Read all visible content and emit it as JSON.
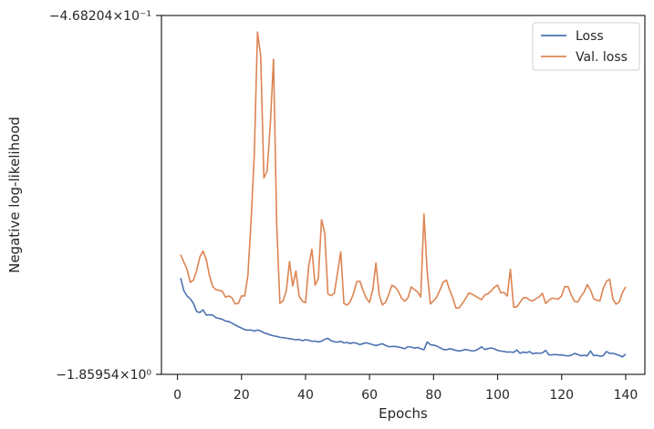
{
  "chart_data": {
    "type": "line",
    "xlabel": "Epochs",
    "ylabel": "Negative log-likelihood",
    "xlim": [
      -5,
      146
    ],
    "x_ticks": [
      0,
      20,
      40,
      60,
      80,
      100,
      120,
      140
    ],
    "y_scale": "log",
    "ylim": [
      -1.85954,
      -0.468204
    ],
    "y_tick_labels": [
      "−4.68204×10⁻¹",
      "−1.85954×10⁰"
    ],
    "grid": false,
    "legend_position": "upper right",
    "series": [
      {
        "name": "Loss",
        "color": "#4c72b0",
        "x": [
          1,
          2,
          3,
          4,
          5,
          6,
          7,
          8,
          9,
          10,
          11,
          12,
          13,
          14,
          15,
          16,
          17,
          18,
          19,
          20,
          21,
          22,
          23,
          24,
          25,
          26,
          27,
          28,
          29,
          30,
          31,
          32,
          33,
          34,
          35,
          36,
          37,
          38,
          39,
          40,
          41,
          42,
          43,
          44,
          45,
          46,
          47,
          48,
          49,
          50,
          51,
          52,
          53,
          54,
          55,
          56,
          57,
          58,
          59,
          60,
          61,
          62,
          63,
          64,
          65,
          66,
          67,
          68,
          69,
          70,
          71,
          72,
          73,
          74,
          75,
          76,
          77,
          78,
          79,
          80,
          81,
          82,
          83,
          84,
          85,
          86,
          87,
          88,
          89,
          90,
          91,
          92,
          93,
          94,
          95,
          96,
          97,
          98,
          99,
          100,
          101,
          102,
          103,
          104,
          105,
          106,
          107,
          108,
          109,
          110,
          111,
          112,
          113,
          114,
          115,
          116,
          117,
          118,
          119,
          120,
          121,
          122,
          123,
          124,
          125,
          126,
          127,
          128,
          129,
          130,
          131,
          132,
          133,
          134,
          135,
          136,
          137,
          138,
          139,
          140
        ],
        "y": [
          -1.2845,
          -1.348,
          -1.376,
          -1.391,
          -1.416,
          -1.4612,
          -1.466,
          -1.451,
          -1.481,
          -1.479,
          -1.481,
          -1.495,
          -1.5,
          -1.505,
          -1.515,
          -1.518,
          -1.527,
          -1.538,
          -1.548,
          -1.556,
          -1.566,
          -1.569,
          -1.568,
          -1.575,
          -1.568,
          -1.574,
          -1.585,
          -1.591,
          -1.598,
          -1.604,
          -1.607,
          -1.613,
          -1.615,
          -1.618,
          -1.621,
          -1.625,
          -1.628,
          -1.626,
          -1.634,
          -1.628,
          -1.631,
          -1.638,
          -1.636,
          -1.642,
          -1.637,
          -1.625,
          -1.619,
          -1.634,
          -1.64,
          -1.643,
          -1.638,
          -1.648,
          -1.645,
          -1.652,
          -1.646,
          -1.651,
          -1.659,
          -1.652,
          -1.647,
          -1.653,
          -1.659,
          -1.665,
          -1.659,
          -1.653,
          -1.664,
          -1.672,
          -1.671,
          -1.67,
          -1.674,
          -1.679,
          -1.685,
          -1.672,
          -1.675,
          -1.681,
          -1.677,
          -1.685,
          -1.692,
          -1.642,
          -1.659,
          -1.662,
          -1.668,
          -1.679,
          -1.69,
          -1.692,
          -1.685,
          -1.69,
          -1.696,
          -1.7,
          -1.696,
          -1.69,
          -1.695,
          -1.7,
          -1.697,
          -1.687,
          -1.673,
          -1.69,
          -1.684,
          -1.68,
          -1.686,
          -1.696,
          -1.7,
          -1.703,
          -1.707,
          -1.706,
          -1.709,
          -1.693,
          -1.715,
          -1.707,
          -1.711,
          -1.704,
          -1.718,
          -1.713,
          -1.715,
          -1.712,
          -1.696,
          -1.725,
          -1.725,
          -1.723,
          -1.726,
          -1.725,
          -1.73,
          -1.732,
          -1.728,
          -1.716,
          -1.722,
          -1.731,
          -1.728,
          -1.732,
          -1.7,
          -1.73,
          -1.728,
          -1.735,
          -1.73,
          -1.703,
          -1.716,
          -1.715,
          -1.722,
          -1.729,
          -1.739,
          -1.72
        ]
      },
      {
        "name": "Val. loss",
        "color": "#dd8452",
        "x": [
          1,
          2,
          3,
          4,
          5,
          6,
          7,
          8,
          9,
          10,
          11,
          12,
          13,
          14,
          15,
          16,
          17,
          18,
          19,
          20,
          21,
          22,
          23,
          24,
          25,
          26,
          27,
          28,
          29,
          30,
          31,
          32,
          33,
          34,
          35,
          36,
          37,
          38,
          39,
          40,
          41,
          42,
          43,
          44,
          45,
          46,
          47,
          48,
          49,
          50,
          51,
          52,
          53,
          54,
          55,
          56,
          57,
          58,
          59,
          60,
          61,
          62,
          63,
          64,
          65,
          66,
          67,
          68,
          69,
          70,
          71,
          72,
          73,
          74,
          75,
          76,
          77,
          78,
          79,
          80,
          81,
          82,
          83,
          84,
          85,
          86,
          87,
          88,
          89,
          90,
          91,
          92,
          93,
          94,
          95,
          96,
          97,
          98,
          99,
          100,
          101,
          102,
          103,
          104,
          105,
          106,
          107,
          108,
          109,
          110,
          111,
          112,
          113,
          114,
          115,
          116,
          117,
          118,
          119,
          120,
          121,
          122,
          123,
          124,
          125,
          126,
          127,
          128,
          129,
          130,
          131,
          132,
          133,
          134,
          135,
          136,
          137,
          138,
          139,
          140
        ],
        "y": [
          -1.174,
          -1.208,
          -1.242,
          -1.306,
          -1.294,
          -1.248,
          -1.184,
          -1.158,
          -1.196,
          -1.272,
          -1.327,
          -1.343,
          -1.346,
          -1.351,
          -1.382,
          -1.376,
          -1.385,
          -1.418,
          -1.416,
          -1.376,
          -1.376,
          -1.272,
          -1.029,
          -0.8,
          -0.499,
          -0.547,
          -0.874,
          -0.851,
          -0.713,
          -0.554,
          -1.043,
          -1.416,
          -1.401,
          -1.35,
          -1.206,
          -1.324,
          -1.25,
          -1.376,
          -1.404,
          -1.412,
          -1.226,
          -1.15,
          -1.32,
          -1.286,
          -1.026,
          -1.08,
          -1.366,
          -1.374,
          -1.362,
          -1.258,
          -1.161,
          -1.416,
          -1.425,
          -1.406,
          -1.362,
          -1.302,
          -1.3,
          -1.348,
          -1.388,
          -1.41,
          -1.344,
          -1.212,
          -1.368,
          -1.424,
          -1.41,
          -1.368,
          -1.32,
          -1.33,
          -1.352,
          -1.388,
          -1.404,
          -1.386,
          -1.329,
          -1.342,
          -1.354,
          -1.382,
          -1.004,
          -1.252,
          -1.419,
          -1.401,
          -1.382,
          -1.344,
          -1.305,
          -1.294,
          -1.344,
          -1.386,
          -1.441,
          -1.44,
          -1.416,
          -1.39,
          -1.36,
          -1.366,
          -1.376,
          -1.386,
          -1.396,
          -1.37,
          -1.364,
          -1.35,
          -1.33,
          -1.32,
          -1.36,
          -1.357,
          -1.376,
          -1.242,
          -1.436,
          -1.435,
          -1.41,
          -1.386,
          -1.384,
          -1.398,
          -1.402,
          -1.39,
          -1.38,
          -1.362,
          -1.416,
          -1.4,
          -1.387,
          -1.39,
          -1.392,
          -1.375,
          -1.327,
          -1.328,
          -1.37,
          -1.404,
          -1.409,
          -1.379,
          -1.356,
          -1.317,
          -1.344,
          -1.39,
          -1.399,
          -1.401,
          -1.335,
          -1.301,
          -1.29,
          -1.392,
          -1.42,
          -1.407,
          -1.358,
          -1.328
        ]
      }
    ]
  }
}
